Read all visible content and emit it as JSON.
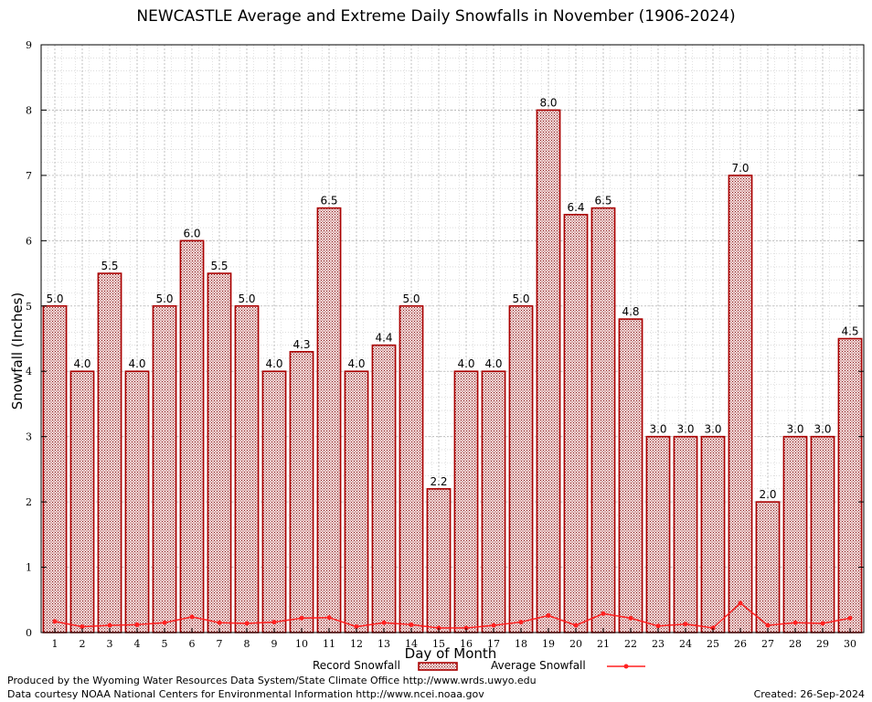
{
  "chart_data": {
    "type": "bar",
    "title": "NEWCASTLE Average and Extreme Daily Snowfalls in November (1906-2024)",
    "xlabel": "Day of Month",
    "ylabel": "Snowfall (Inches)",
    "ylim": [
      0,
      9
    ],
    "yticks": [
      0,
      1,
      2,
      3,
      4,
      5,
      6,
      7,
      8,
      9
    ],
    "grid": true,
    "categories": [
      "1",
      "2",
      "3",
      "4",
      "5",
      "6",
      "7",
      "8",
      "9",
      "10",
      "11",
      "12",
      "13",
      "14",
      "15",
      "16",
      "17",
      "18",
      "19",
      "20",
      "21",
      "22",
      "23",
      "24",
      "25",
      "26",
      "27",
      "28",
      "29",
      "30"
    ],
    "series": [
      {
        "name": "Record Snowfall",
        "type": "bar",
        "color": "#aa0000",
        "values": [
          5.0,
          4.0,
          5.5,
          4.0,
          5.0,
          6.0,
          5.5,
          5.0,
          4.0,
          4.3,
          6.5,
          4.0,
          4.4,
          5.0,
          2.2,
          4.0,
          4.0,
          5.0,
          8.0,
          6.4,
          6.5,
          4.8,
          3.0,
          3.0,
          3.0,
          7.0,
          2.0,
          3.0,
          3.0,
          4.5
        ],
        "labels": [
          "5.0",
          "4.0",
          "5.5",
          "4.0",
          "5.0",
          "6.0",
          "5.5",
          "5.0",
          "4.0",
          "4.3",
          "6.5",
          "4.0",
          "4.4",
          "5.0",
          "2.2",
          "4.0",
          "4.0",
          "5.0",
          "8.0",
          "6.4",
          "6.5",
          "4.8",
          "3.0",
          "3.0",
          "3.0",
          "7.0",
          "2.0",
          "3.0",
          "3.0",
          "4.5"
        ]
      },
      {
        "name": "Average Snowfall",
        "type": "line",
        "color": "#ff2020",
        "values": [
          0.17,
          0.09,
          0.11,
          0.12,
          0.15,
          0.24,
          0.15,
          0.14,
          0.16,
          0.22,
          0.23,
          0.09,
          0.15,
          0.12,
          0.07,
          0.07,
          0.11,
          0.16,
          0.26,
          0.11,
          0.29,
          0.22,
          0.1,
          0.13,
          0.07,
          0.45,
          0.11,
          0.15,
          0.14,
          0.22
        ]
      }
    ],
    "legend_position": "bottom-center"
  },
  "footer": {
    "produced_by": "Produced by the Wyoming Water Resources Data System/State Climate Office http://www.wrds.uwyo.edu",
    "data_courtesy": "Data courtesy NOAA National Centers for Environmental Information http://www.ncei.noaa.gov",
    "created": "Created:  26-Sep-2024"
  }
}
